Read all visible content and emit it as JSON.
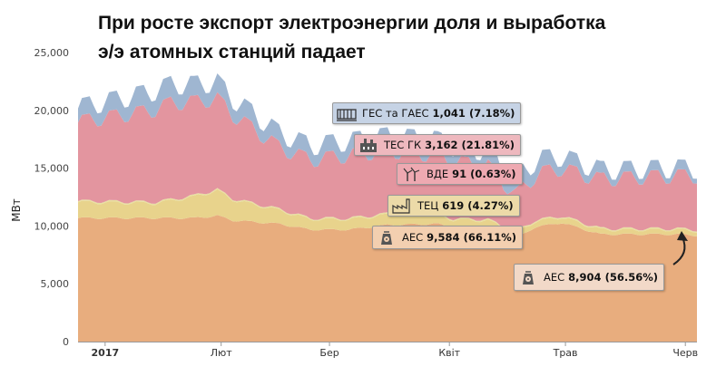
{
  "title": "При росте экспорт электроэнергии доля и выработка э/э атомных станций падает",
  "colors": {
    "aes": "#e8ad7e",
    "tec": "#e8d38c",
    "vde": "#e7e0a0",
    "tes": "#e3959f",
    "ges": "#9fb6d1"
  },
  "chart_data": {
    "type": "area",
    "stacked": true,
    "title": "",
    "xlabel": "",
    "ylabel": "МВт",
    "ylim": [
      0,
      25000
    ],
    "yticks": [
      "0",
      "5,000",
      "10,000",
      "15,000",
      "20,000",
      "25,000"
    ],
    "xticks": [
      {
        "label": "2017",
        "day": 7,
        "bold": true
      },
      {
        "label": "Лют",
        "day": 37,
        "bold": false
      },
      {
        "label": "Бер",
        "day": 65,
        "bold": false
      },
      {
        "label": "Квіт",
        "day": 96,
        "bold": false
      },
      {
        "label": "Трав",
        "day": 126,
        "bold": false
      },
      {
        "label": "Черв",
        "day": 157,
        "bold": false
      }
    ],
    "x_range": [
      0,
      160
    ],
    "grid": false,
    "series": [
      {
        "name": "АЕС",
        "key": "aes",
        "profile": [
          [
            0,
            10700
          ],
          [
            20,
            10700
          ],
          [
            30,
            10700
          ],
          [
            36,
            10900
          ],
          [
            40,
            10500
          ],
          [
            48,
            10300
          ],
          [
            52,
            10200
          ],
          [
            60,
            9700
          ],
          [
            70,
            9700
          ],
          [
            80,
            10100
          ],
          [
            93,
            10200
          ],
          [
            97,
            9800
          ],
          [
            106,
            9800
          ],
          [
            113,
            8900
          ],
          [
            118,
            9900
          ],
          [
            125,
            10300
          ],
          [
            135,
            9300
          ],
          [
            145,
            9300
          ],
          [
            155,
            9300
          ],
          [
            160,
            9200
          ]
        ]
      },
      {
        "name": "ТЕЦ",
        "key": "tec",
        "profile": [
          [
            0,
            1400
          ],
          [
            20,
            1300
          ],
          [
            36,
            2200
          ],
          [
            40,
            1800
          ],
          [
            52,
            1200
          ],
          [
            60,
            900
          ],
          [
            70,
            900
          ],
          [
            80,
            900
          ],
          [
            93,
            800
          ],
          [
            106,
            700
          ],
          [
            115,
            500
          ],
          [
            125,
            500
          ],
          [
            140,
            400
          ],
          [
            160,
            400
          ]
        ]
      },
      {
        "name": "ВДЕ",
        "key": "vde",
        "profile": [
          [
            0,
            100
          ],
          [
            80,
            100
          ],
          [
            160,
            100
          ]
        ]
      },
      {
        "name": "ТЕС ГК",
        "key": "tes",
        "profile": [
          [
            0,
            7000
          ],
          [
            18,
            8000
          ],
          [
            24,
            8500
          ],
          [
            36,
            8000
          ],
          [
            44,
            6800
          ],
          [
            52,
            5500
          ],
          [
            60,
            5200
          ],
          [
            70,
            5600
          ],
          [
            80,
            5600
          ],
          [
            93,
            5200
          ],
          [
            106,
            4800
          ],
          [
            113,
            3300
          ],
          [
            120,
            4200
          ],
          [
            130,
            4300
          ],
          [
            145,
            4600
          ],
          [
            160,
            4800
          ]
        ]
      },
      {
        "name": "ГЕС та ГАЕС",
        "key": "ges",
        "profile": [
          [
            0,
            1300
          ],
          [
            20,
            1700
          ],
          [
            36,
            1500
          ],
          [
            52,
            1300
          ],
          [
            60,
            1300
          ],
          [
            70,
            1300
          ],
          [
            93,
            1400
          ],
          [
            106,
            1300
          ],
          [
            113,
            1500
          ],
          [
            125,
            1100
          ],
          [
            140,
            800
          ],
          [
            160,
            700
          ]
        ]
      }
    ],
    "tooltips": [
      {
        "icon": "hydro-plant-icon",
        "label": "ГЕС та ГАЕС",
        "value": "1,041",
        "pct": "(7.18%)",
        "color": "#c6d3e5"
      },
      {
        "icon": "thermal-plant-icon",
        "label": "ТЕС ГК",
        "value": "3,162",
        "pct": "(21.81%)",
        "color": "#eeb8be"
      },
      {
        "icon": "wind-turbine-icon",
        "label": "ВДЕ",
        "value": "91",
        "pct": "(0.63%)",
        "color": "#eea9b1"
      },
      {
        "icon": "chp-plant-icon",
        "label": "ТЕЦ",
        "value": "619",
        "pct": "(4.27%)",
        "color": "#ecdaa8"
      },
      {
        "icon": "nuclear-plant-icon",
        "label": "АЕС",
        "value": "9,584",
        "pct": "(66.11%)",
        "color": "#f3cfb0"
      },
      {
        "icon": "nuclear-plant-icon",
        "label": "АЕС",
        "value": "8,904",
        "pct": "(56.56%)",
        "color": "#f2d9c8"
      }
    ]
  }
}
